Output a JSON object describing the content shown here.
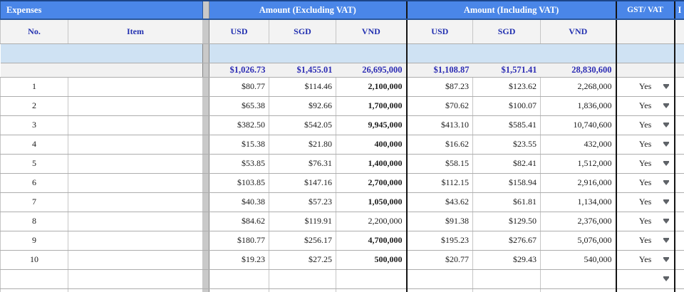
{
  "sheet": {
    "sections": {
      "expenses": "Expenses",
      "excl_vat": "Amount (Excluding VAT)",
      "incl_vat": "Amount (Including VAT)",
      "gst_vat": "GST/ VAT",
      "partial_right": "I"
    },
    "columns": {
      "no": "No.",
      "item": "Item",
      "usd": "USD",
      "sgd": "SGD",
      "vnd": "VND"
    },
    "totals": {
      "usd_ex": "$1,026.73",
      "sgd_ex": "$1,455.01",
      "vnd_ex": "26,695,000",
      "usd_in": "$1,108.87",
      "sgd_in": "$1,571.41",
      "vnd_in": "28,830,600"
    },
    "rows": [
      {
        "no": "1",
        "item": "",
        "usd_ex": "$80.77",
        "sgd_ex": "$114.46",
        "vnd_ex": "2,100,000",
        "vnd_ex_bold": true,
        "usd_in": "$87.23",
        "sgd_in": "$123.62",
        "vnd_in": "2,268,000",
        "gst": "Yes"
      },
      {
        "no": "2",
        "item": "",
        "usd_ex": "$65.38",
        "sgd_ex": "$92.66",
        "vnd_ex": "1,700,000",
        "vnd_ex_bold": true,
        "usd_in": "$70.62",
        "sgd_in": "$100.07",
        "vnd_in": "1,836,000",
        "gst": "Yes"
      },
      {
        "no": "3",
        "item": "",
        "usd_ex": "$382.50",
        "sgd_ex": "$542.05",
        "vnd_ex": "9,945,000",
        "vnd_ex_bold": true,
        "usd_in": "$413.10",
        "sgd_in": "$585.41",
        "vnd_in": "10,740,600",
        "gst": "Yes"
      },
      {
        "no": "4",
        "item": "",
        "usd_ex": "$15.38",
        "sgd_ex": "$21.80",
        "vnd_ex": "400,000",
        "vnd_ex_bold": true,
        "usd_in": "$16.62",
        "sgd_in": "$23.55",
        "vnd_in": "432,000",
        "gst": "Yes"
      },
      {
        "no": "5",
        "item": "",
        "usd_ex": "$53.85",
        "sgd_ex": "$76.31",
        "vnd_ex": "1,400,000",
        "vnd_ex_bold": true,
        "usd_in": "$58.15",
        "sgd_in": "$82.41",
        "vnd_in": "1,512,000",
        "gst": "Yes"
      },
      {
        "no": "6",
        "item": "",
        "usd_ex": "$103.85",
        "sgd_ex": "$147.16",
        "vnd_ex": "2,700,000",
        "vnd_ex_bold": true,
        "usd_in": "$112.15",
        "sgd_in": "$158.94",
        "vnd_in": "2,916,000",
        "gst": "Yes"
      },
      {
        "no": "7",
        "item": "",
        "usd_ex": "$40.38",
        "sgd_ex": "$57.23",
        "vnd_ex": "1,050,000",
        "vnd_ex_bold": true,
        "usd_in": "$43.62",
        "sgd_in": "$61.81",
        "vnd_in": "1,134,000",
        "gst": "Yes"
      },
      {
        "no": "8",
        "item": "",
        "usd_ex": "$84.62",
        "sgd_ex": "$119.91",
        "vnd_ex": "2,200,000",
        "vnd_ex_bold": false,
        "usd_in": "$91.38",
        "sgd_in": "$129.50",
        "vnd_in": "2,376,000",
        "gst": "Yes"
      },
      {
        "no": "9",
        "item": "",
        "usd_ex": "$180.77",
        "sgd_ex": "$256.17",
        "vnd_ex": "4,700,000",
        "vnd_ex_bold": true,
        "usd_in": "$195.23",
        "sgd_in": "$276.67",
        "vnd_in": "5,076,000",
        "gst": "Yes"
      },
      {
        "no": "10",
        "item": "",
        "usd_ex": "$19.23",
        "sgd_ex": "$27.25",
        "vnd_ex": "500,000",
        "vnd_ex_bold": true,
        "usd_in": "$20.77",
        "sgd_in": "$29.43",
        "vnd_in": "540,000",
        "gst": "Yes"
      },
      {
        "no": "",
        "item": "",
        "usd_ex": "",
        "sgd_ex": "",
        "vnd_ex": "",
        "vnd_ex_bold": false,
        "usd_in": "",
        "sgd_in": "",
        "vnd_in": "",
        "gst": ""
      }
    ],
    "colors": {
      "header_blue": "#4a86e8",
      "header_border_dark": "#1c4587",
      "heading_text_navy": "#2230b0",
      "totals_text_navy": "#2d2db4",
      "lightblue_row": "#cfe2f3",
      "gray_row": "#f1f1f1"
    }
  }
}
